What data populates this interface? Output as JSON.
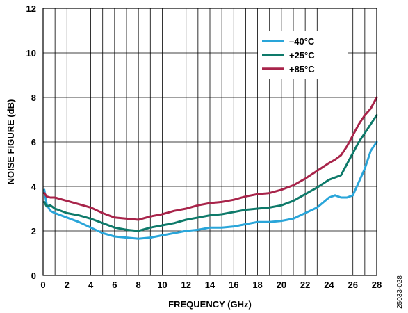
{
  "figure_id": "25033-028",
  "chart_data": {
    "type": "line",
    "title": "",
    "xlabel": "FREQUENCY (GHz)",
    "ylabel": "NOISE FIGURE (dB)",
    "xlim": [
      0,
      28
    ],
    "ylim": [
      0,
      12
    ],
    "x_ticks": [
      0,
      2,
      4,
      6,
      8,
      10,
      12,
      14,
      16,
      18,
      20,
      22,
      24,
      26,
      28
    ],
    "y_ticks": [
      0,
      2,
      4,
      6,
      8,
      10,
      12
    ],
    "grid": true,
    "legend_position": "top-right",
    "x": [
      0.1,
      0.3,
      0.6,
      1,
      2,
      3,
      4,
      5,
      6,
      7,
      8,
      9,
      10,
      11,
      12,
      13,
      14,
      15,
      16,
      17,
      18,
      19,
      20,
      21,
      22,
      23,
      24,
      24.5,
      25,
      25.5,
      26,
      26.5,
      27,
      27.5,
      28
    ],
    "series": [
      {
        "name": "–40°C",
        "color": "#29a5d9",
        "values": [
          3.85,
          3.2,
          2.9,
          2.8,
          2.6,
          2.4,
          2.15,
          1.9,
          1.75,
          1.7,
          1.65,
          1.7,
          1.8,
          1.9,
          2.0,
          2.05,
          2.15,
          2.15,
          2.2,
          2.3,
          2.4,
          2.4,
          2.45,
          2.55,
          2.8,
          3.05,
          3.5,
          3.6,
          3.5,
          3.5,
          3.6,
          4.2,
          4.8,
          5.6,
          6.0
        ]
      },
      {
        "name": "+25°C",
        "color": "#0e7a6a",
        "values": [
          3.3,
          3.1,
          3.15,
          3.0,
          2.8,
          2.7,
          2.55,
          2.35,
          2.15,
          2.05,
          2.0,
          2.15,
          2.25,
          2.35,
          2.5,
          2.6,
          2.7,
          2.75,
          2.85,
          2.95,
          3.0,
          3.05,
          3.15,
          3.35,
          3.65,
          3.95,
          4.3,
          4.4,
          4.5,
          5.0,
          5.5,
          6.0,
          6.4,
          6.8,
          7.2
        ]
      },
      {
        "name": "+85°C",
        "color": "#a8244a",
        "values": [
          3.7,
          3.55,
          3.5,
          3.5,
          3.35,
          3.2,
          3.05,
          2.8,
          2.6,
          2.55,
          2.5,
          2.65,
          2.75,
          2.9,
          3.0,
          3.15,
          3.25,
          3.3,
          3.4,
          3.55,
          3.65,
          3.7,
          3.85,
          4.05,
          4.35,
          4.7,
          5.05,
          5.2,
          5.4,
          5.8,
          6.3,
          6.8,
          7.2,
          7.5,
          8.0
        ]
      }
    ]
  }
}
